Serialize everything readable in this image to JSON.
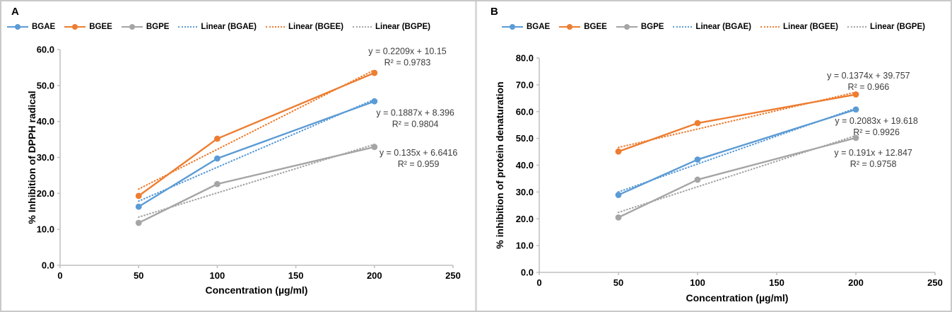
{
  "figure": {
    "colors": {
      "bgae": "#5B9BD5",
      "bgee": "#ED7D31",
      "bgpe": "#A5A5A5",
      "axis": "#BFBFBF",
      "annotation_text": "#3C3C3C",
      "label_text": "#000000"
    }
  },
  "chart_data": [
    {
      "type": "line",
      "panel_label": "A",
      "title": "",
      "xlabel": "Concentration (µg/ml)",
      "ylabel": "% Inhibition of DPPH radical",
      "x": [
        50,
        100,
        200
      ],
      "xlim": [
        0,
        250
      ],
      "xticks": [
        "0",
        "50",
        "100",
        "150",
        "200",
        "250"
      ],
      "ylim": [
        0,
        60
      ],
      "yticks": [
        "0.0",
        "10.0",
        "20.0",
        "30.0",
        "40.0",
        "50.0",
        "60.0"
      ],
      "grid": false,
      "legend_position": "top-left",
      "series": [
        {
          "name": "BGAE",
          "color": "#5B9BD5",
          "values": [
            16.3,
            29.7,
            45.6
          ]
        },
        {
          "name": "BGEE",
          "color": "#ED7D31",
          "values": [
            19.3,
            35.2,
            53.5
          ]
        },
        {
          "name": "BGPE",
          "color": "#A5A5A5",
          "values": [
            11.8,
            22.6,
            32.9
          ]
        }
      ],
      "trendlines": [
        {
          "name": "Linear (BGAE)",
          "color": "#5B9BD5",
          "slope": 0.1887,
          "intercept": 8.396,
          "r2": 0.9804
        },
        {
          "name": "Linear (BGEE)",
          "color": "#ED7D31",
          "slope": 0.2209,
          "intercept": 10.15,
          "r2": 0.9783
        },
        {
          "name": "Linear (BGPE)",
          "color": "#A5A5A5",
          "slope": 0.135,
          "intercept": 6.6416,
          "r2": 0.959
        }
      ],
      "annotations": [
        {
          "lines": [
            "y = 0.2209x + 10.15",
            "R² = 0.9783"
          ],
          "x": 221,
          "y": 58.7
        },
        {
          "lines": [
            "y = 0.1887x + 8.396",
            "R² = 0.9804"
          ],
          "x": 226,
          "y": 41.6
        },
        {
          "lines": [
            "y = 0.135x + 6.6416",
            "R² = 0.959"
          ],
          "x": 228,
          "y": 30.5
        }
      ]
    },
    {
      "type": "line",
      "panel_label": "B",
      "title": "",
      "xlabel": "Concentration (µg/ml)",
      "ylabel": "% inhibition of protein denaturation",
      "x": [
        50,
        100,
        200
      ],
      "xlim": [
        0,
        250
      ],
      "xticks": [
        "0",
        "50",
        "100",
        "150",
        "200",
        "250"
      ],
      "ylim": [
        0,
        80
      ],
      "yticks": [
        "0.0",
        "10.0",
        "20.0",
        "30.0",
        "40.0",
        "50.0",
        "60.0",
        "70.0",
        "80.0"
      ],
      "grid": false,
      "legend_position": "top-left",
      "series": [
        {
          "name": "BGAE",
          "color": "#5B9BD5",
          "values": [
            28.9,
            42.1,
            60.8
          ]
        },
        {
          "name": "BGEE",
          "color": "#ED7D31",
          "values": [
            45.1,
            55.7,
            66.4
          ]
        },
        {
          "name": "BGPE",
          "color": "#A5A5A5",
          "values": [
            20.5,
            34.6,
            50.2
          ]
        }
      ],
      "trendlines": [
        {
          "name": "Linear (BGAE)",
          "color": "#5B9BD5",
          "slope": 0.2083,
          "intercept": 19.618,
          "r2": 0.9926
        },
        {
          "name": "Linear (BGEE)",
          "color": "#ED7D31",
          "slope": 0.1374,
          "intercept": 39.757,
          "r2": 0.966
        },
        {
          "name": "Linear (BGPE)",
          "color": "#A5A5A5",
          "slope": 0.191,
          "intercept": 12.847,
          "r2": 0.9758
        }
      ],
      "annotations": [
        {
          "lines": [
            "y = 0.1374x + 39.757",
            "R² = 0.966"
          ],
          "x": 208,
          "y": 72.4
        },
        {
          "lines": [
            "y = 0.2083x + 19.618",
            "R² = 0.9926"
          ],
          "x": 213,
          "y": 55.5
        },
        {
          "lines": [
            "y = 0.191x + 12.847",
            "R² = 0.9758"
          ],
          "x": 211,
          "y": 43.6
        }
      ]
    }
  ]
}
